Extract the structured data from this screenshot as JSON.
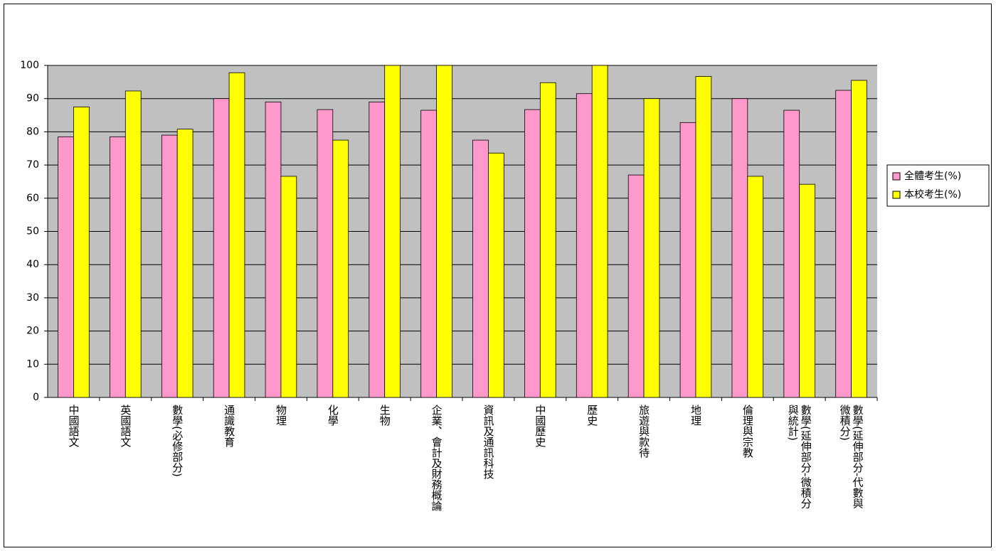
{
  "chart_data": {
    "type": "bar",
    "categories": [
      "中國語文",
      "英國語文",
      "數學(必修部分)",
      "通識教育",
      "物理",
      "化學",
      "生物",
      "企業、會計及財務概論",
      "資訊及通訊科技",
      "中國歷史",
      "歷史",
      "旅遊與款待",
      "地理",
      "倫理與宗教",
      "數學(延伸部分-微積分與統計)",
      "數學(延伸部分-代數與微積分)"
    ],
    "series": [
      {
        "name": "全體考生(%)",
        "color": "#ff99cc",
        "values": [
          78.5,
          78.5,
          79,
          90,
          89,
          86.7,
          89,
          86.5,
          77.5,
          86.7,
          91.5,
          67,
          82.8,
          90,
          86.5,
          92.5
        ]
      },
      {
        "name": "本校考生(%)",
        "color": "#ffff00",
        "values": [
          87.5,
          92.3,
          80.8,
          97.8,
          66.6,
          77.5,
          100,
          100,
          73.6,
          94.8,
          100,
          90,
          96.7,
          66.6,
          64.2,
          95.5
        ]
      }
    ],
    "ylim": [
      0,
      100
    ],
    "yticks": [
      0,
      10,
      20,
      30,
      40,
      50,
      60,
      70,
      80,
      90,
      100
    ],
    "grid": true,
    "legend": "right"
  }
}
